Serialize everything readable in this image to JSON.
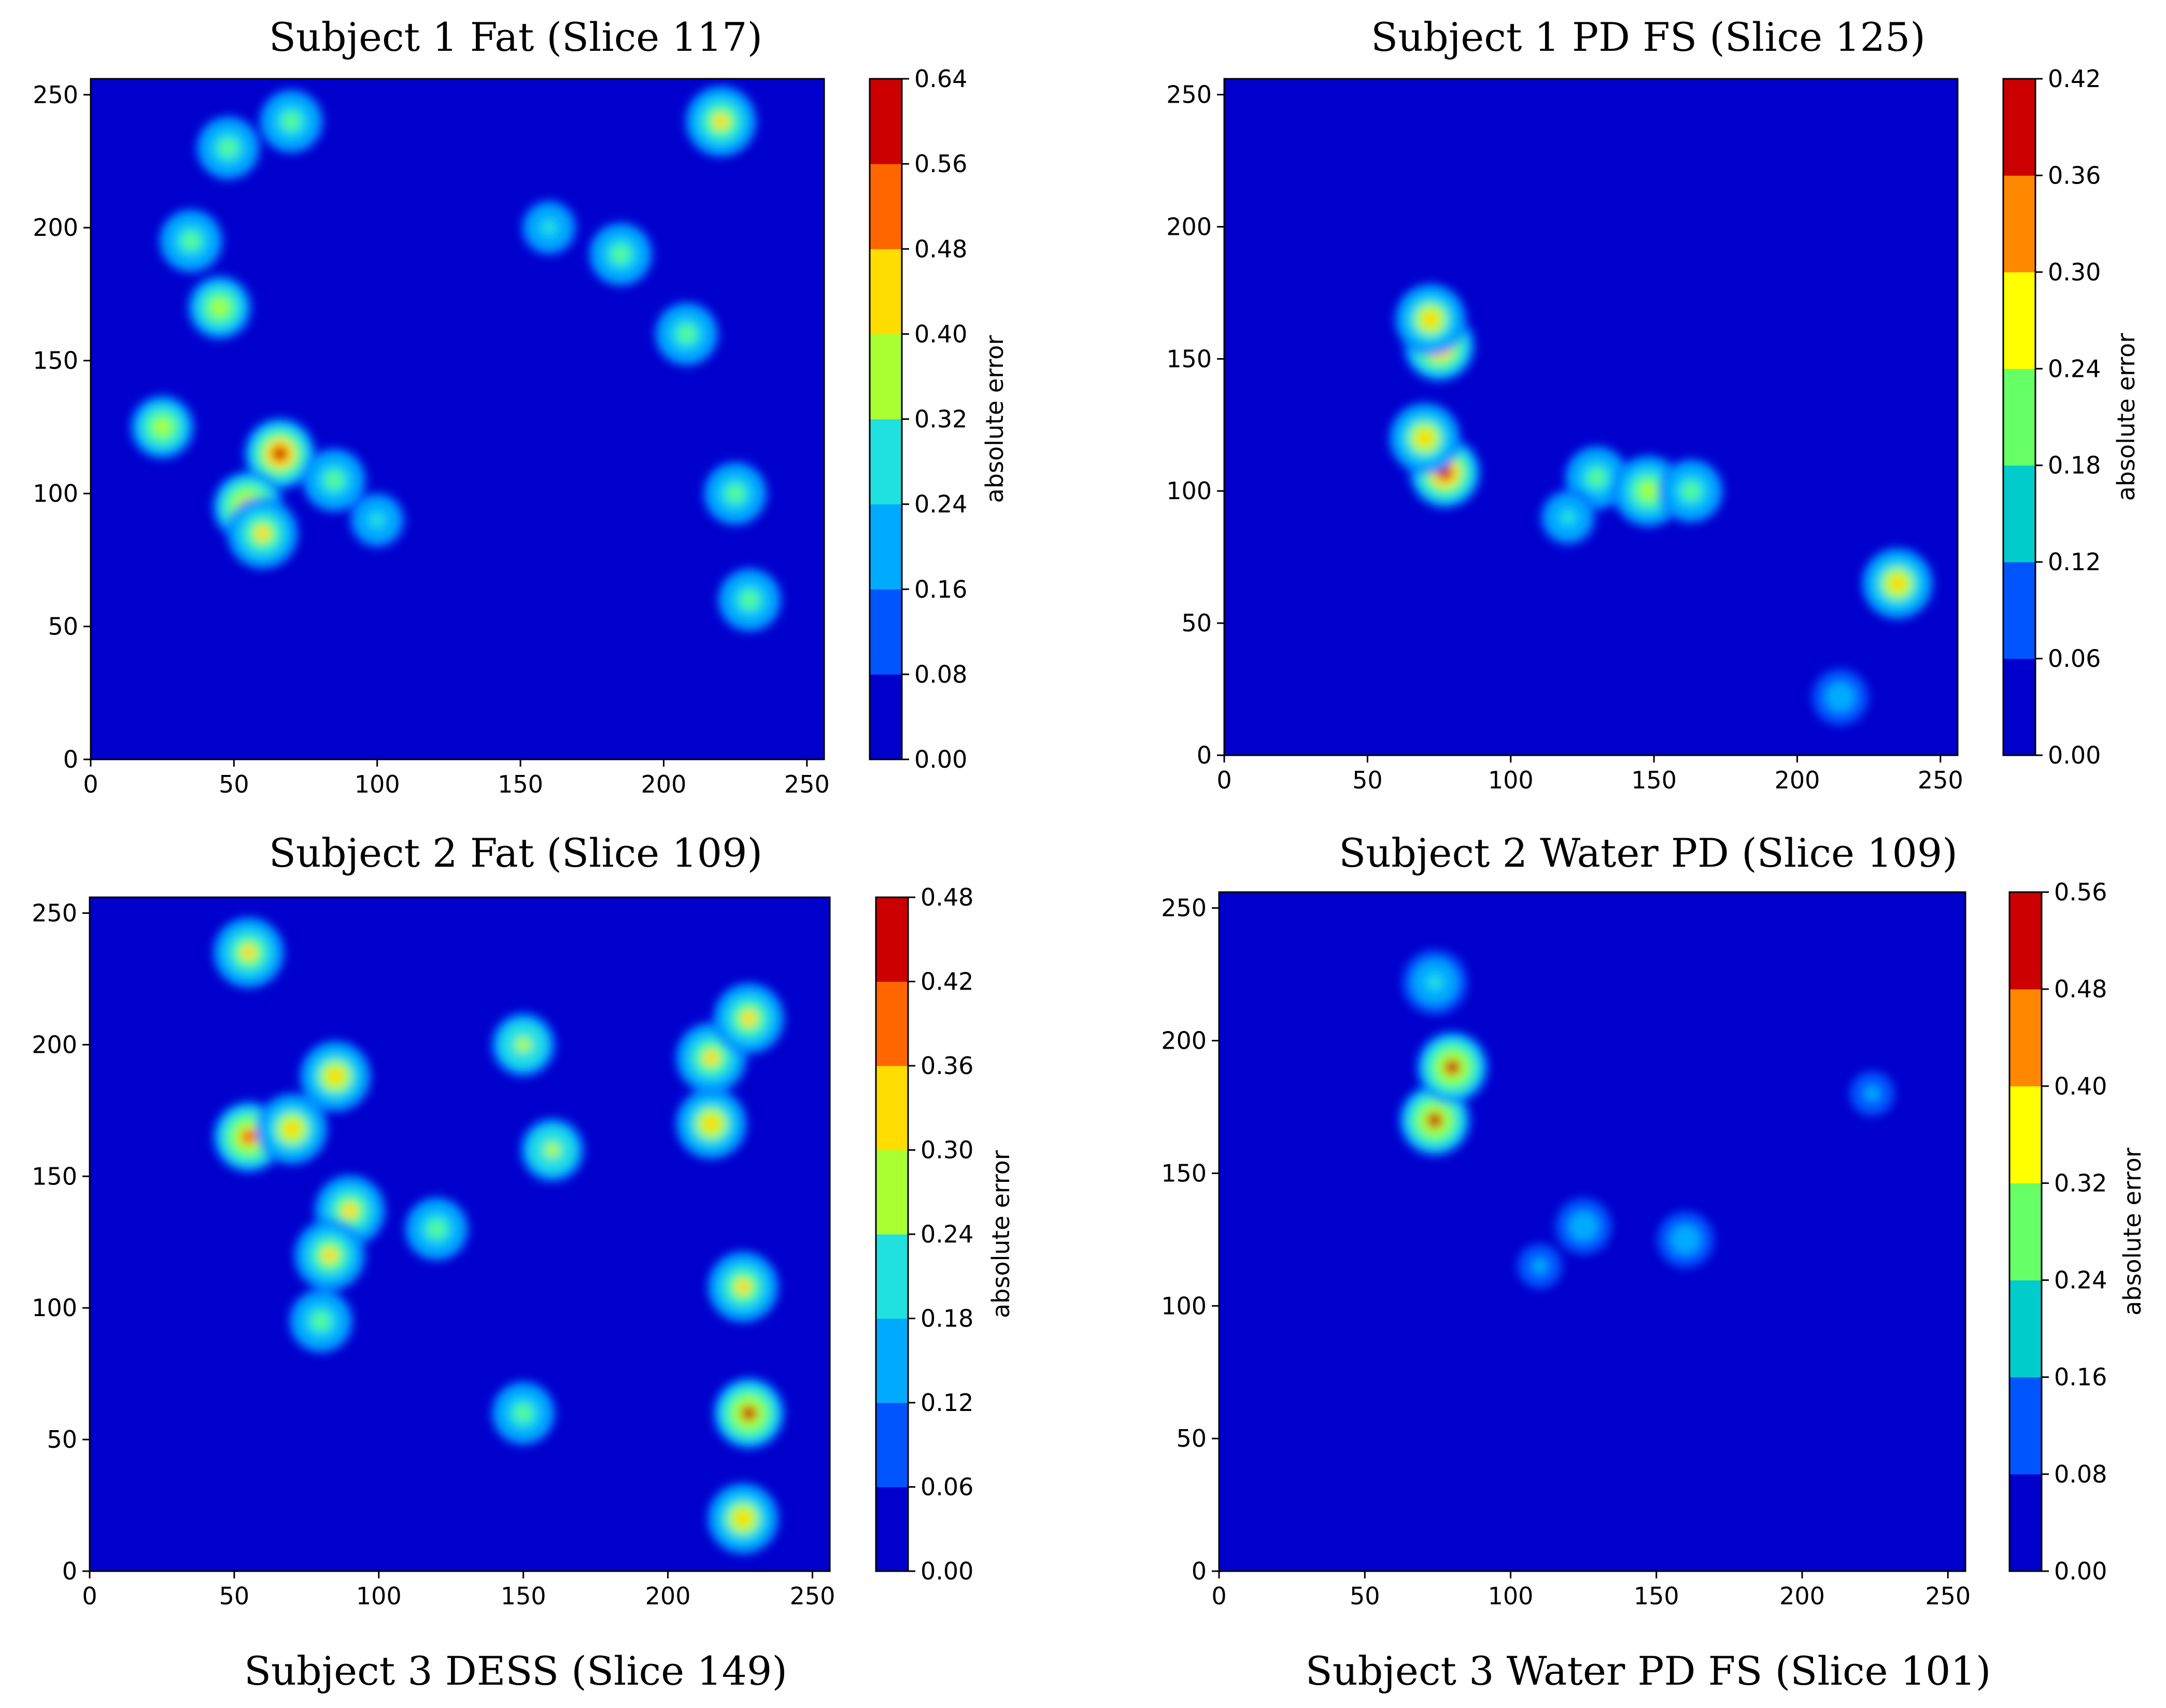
{
  "chart_data": [
    {
      "type": "heatmap",
      "title": "Subject 1 Fat (Slice 117)",
      "x_ticks": [
        0,
        50,
        100,
        150,
        200,
        250
      ],
      "y_ticks": [
        0,
        50,
        100,
        150,
        200,
        250
      ],
      "xlim": [
        0,
        256
      ],
      "ylim": [
        0,
        256
      ],
      "colorbar": {
        "label": "absolute error",
        "ticks": [
          "0.00",
          "0.08",
          "0.16",
          "0.24",
          "0.32",
          "0.40",
          "0.48",
          "0.56",
          "0.64"
        ]
      },
      "hotspots": [
        {
          "x": 66,
          "y": 115,
          "v": 0.6
        },
        {
          "x": 55,
          "y": 95,
          "v": 0.5
        },
        {
          "x": 60,
          "y": 85,
          "v": 0.4
        },
        {
          "x": 45,
          "y": 170,
          "v": 0.35
        },
        {
          "x": 25,
          "y": 125,
          "v": 0.35
        },
        {
          "x": 220,
          "y": 240,
          "v": 0.45
        },
        {
          "x": 225,
          "y": 100,
          "v": 0.3
        },
        {
          "x": 230,
          "y": 60,
          "v": 0.3
        },
        {
          "x": 48,
          "y": 230,
          "v": 0.3
        },
        {
          "x": 70,
          "y": 240,
          "v": 0.25
        },
        {
          "x": 35,
          "y": 195,
          "v": 0.25
        },
        {
          "x": 160,
          "y": 200,
          "v": 0.2
        },
        {
          "x": 185,
          "y": 190,
          "v": 0.25
        },
        {
          "x": 208,
          "y": 160,
          "v": 0.25
        },
        {
          "x": 85,
          "y": 105,
          "v": 0.25
        },
        {
          "x": 100,
          "y": 90,
          "v": 0.2
        }
      ]
    },
    {
      "type": "heatmap",
      "title": "Subject 1 PD FS (Slice 125)",
      "x_ticks": [
        0,
        50,
        100,
        150,
        200,
        250
      ],
      "y_ticks": [
        0,
        50,
        100,
        150,
        200,
        250
      ],
      "xlim": [
        0,
        256
      ],
      "ylim": [
        0,
        256
      ],
      "colorbar": {
        "label": "absolute error",
        "ticks": [
          "0.00",
          "0.06",
          "0.12",
          "0.18",
          "0.24",
          "0.30",
          "0.36",
          "0.42"
        ]
      },
      "hotspots": [
        {
          "x": 75,
          "y": 155,
          "v": 0.38
        },
        {
          "x": 72,
          "y": 165,
          "v": 0.3
        },
        {
          "x": 77,
          "y": 107,
          "v": 0.4
        },
        {
          "x": 70,
          "y": 120,
          "v": 0.3
        },
        {
          "x": 130,
          "y": 105,
          "v": 0.2
        },
        {
          "x": 148,
          "y": 100,
          "v": 0.25
        },
        {
          "x": 163,
          "y": 100,
          "v": 0.2
        },
        {
          "x": 235,
          "y": 65,
          "v": 0.3
        },
        {
          "x": 120,
          "y": 90,
          "v": 0.12
        },
        {
          "x": 215,
          "y": 22,
          "v": 0.1
        }
      ]
    },
    {
      "type": "heatmap",
      "title": "Subject 2 Fat (Slice 109)",
      "x_ticks": [
        0,
        50,
        100,
        150,
        200,
        250
      ],
      "y_ticks": [
        0,
        50,
        100,
        150,
        200,
        250
      ],
      "xlim": [
        0,
        256
      ],
      "ylim": [
        0,
        256
      ],
      "colorbar": {
        "label": "absolute error",
        "ticks": [
          "0.00",
          "0.06",
          "0.12",
          "0.18",
          "0.24",
          "0.30",
          "0.36",
          "0.42",
          "0.48"
        ]
      },
      "hotspots": [
        {
          "x": 55,
          "y": 165,
          "v": 0.4
        },
        {
          "x": 70,
          "y": 168,
          "v": 0.35
        },
        {
          "x": 85,
          "y": 188,
          "v": 0.35
        },
        {
          "x": 90,
          "y": 137,
          "v": 0.3
        },
        {
          "x": 83,
          "y": 120,
          "v": 0.3
        },
        {
          "x": 215,
          "y": 170,
          "v": 0.35
        },
        {
          "x": 215,
          "y": 195,
          "v": 0.3
        },
        {
          "x": 228,
          "y": 210,
          "v": 0.3
        },
        {
          "x": 228,
          "y": 60,
          "v": 0.42
        },
        {
          "x": 226,
          "y": 20,
          "v": 0.35
        },
        {
          "x": 226,
          "y": 108,
          "v": 0.3
        },
        {
          "x": 55,
          "y": 235,
          "v": 0.3
        },
        {
          "x": 120,
          "y": 130,
          "v": 0.2
        },
        {
          "x": 150,
          "y": 200,
          "v": 0.25
        },
        {
          "x": 160,
          "y": 160,
          "v": 0.25
        },
        {
          "x": 150,
          "y": 60,
          "v": 0.2
        },
        {
          "x": 80,
          "y": 95,
          "v": 0.2
        }
      ]
    },
    {
      "type": "heatmap",
      "title": "Subject 2 Water PD (Slice 109)",
      "x_ticks": [
        0,
        50,
        100,
        150,
        200,
        250
      ],
      "y_ticks": [
        0,
        50,
        100,
        150,
        200,
        250
      ],
      "xlim": [
        0,
        256
      ],
      "ylim": [
        0,
        256
      ],
      "colorbar": {
        "label": "absolute error",
        "ticks": [
          "0.00",
          "0.08",
          "0.16",
          "0.24",
          "0.32",
          "0.40",
          "0.48",
          "0.56"
        ]
      },
      "hotspots": [
        {
          "x": 74,
          "y": 170,
          "v": 0.5
        },
        {
          "x": 80,
          "y": 190,
          "v": 0.5
        },
        {
          "x": 74,
          "y": 222,
          "v": 0.2
        },
        {
          "x": 125,
          "y": 130,
          "v": 0.12
        },
        {
          "x": 160,
          "y": 125,
          "v": 0.12
        },
        {
          "x": 110,
          "y": 115,
          "v": 0.1
        },
        {
          "x": 224,
          "y": 180,
          "v": 0.1
        }
      ]
    }
  ],
  "captions": [
    "Subject 3 DESS (Slice 149)",
    "Subject 3 Water PD FS (Slice 101)"
  ]
}
